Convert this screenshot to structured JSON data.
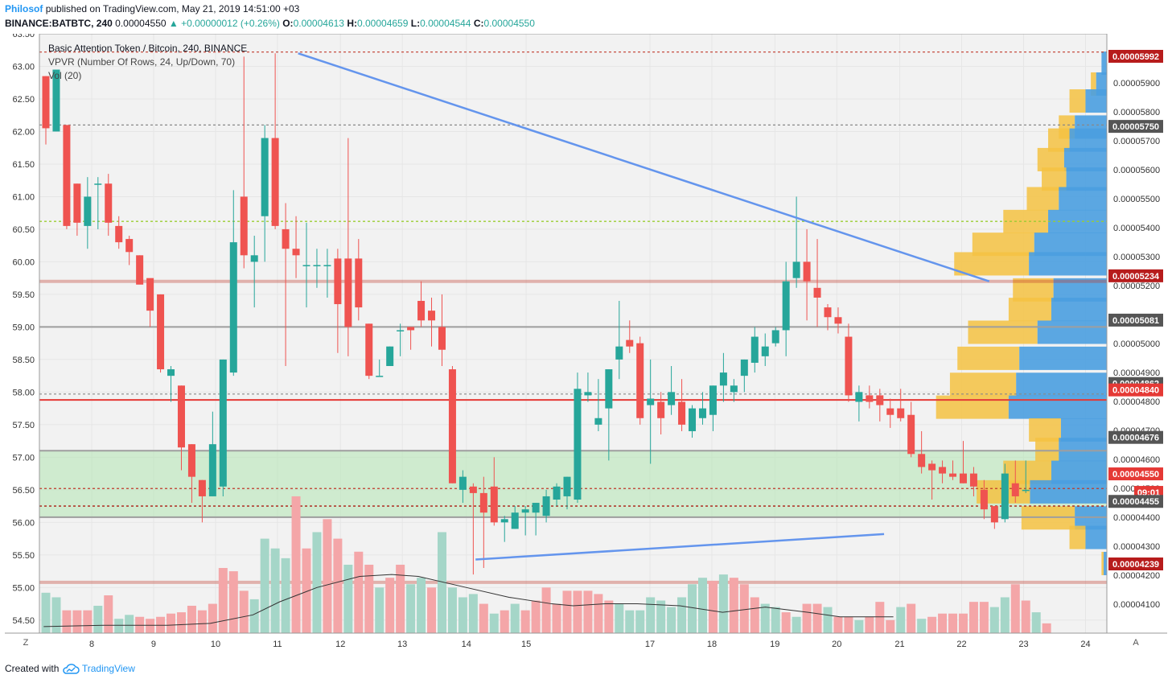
{
  "header": {
    "author": "Philosof",
    "published": "published on TradingView.com, May 21, 2019 14:51:00 +03",
    "symbol": "BINANCE:BATBTC, 240",
    "price": "0.00004550",
    "change": "▲ +0.00000012 (+0.26%)",
    "o_label": "O:",
    "o": "0.00004613",
    "h_label": "H:",
    "h": "0.00004659",
    "l_label": "L:",
    "l": "0.00004544",
    "c_label": "C:",
    "c": "0.00004550"
  },
  "legend": {
    "title": "Basic Attention Token / Bitcoin, 240, BINANCE",
    "vpvr": "VPVR (Number Of Rows, 24, Up/Down, 70)",
    "vol": "Vol (20)"
  },
  "footer": {
    "created": "Created with",
    "brand": "TradingView"
  },
  "colors": {
    "up": "#26a69a",
    "down": "#ef5350",
    "trend": "#6495ed",
    "zone": "#b2e6b2"
  },
  "chart_data": {
    "type": "candlestick",
    "title": "Basic Attention Token / Bitcoin, 240, BINANCE",
    "left_axis": {
      "ticks": [
        "63.50",
        "63.00",
        "62.50",
        "62.00",
        "61.50",
        "61.00",
        "60.50",
        "60.00",
        "59.50",
        "59.00",
        "58.50",
        "58.00",
        "57.50",
        "57.00",
        "56.50",
        "56.00",
        "55.50",
        "55.00",
        "54.50"
      ],
      "range": [
        54.3,
        63.5
      ]
    },
    "right_axis": {
      "ticks": [
        "0.00005900",
        "0.00005800",
        "0.00005700",
        "0.00005600",
        "0.00005500",
        "0.00005400",
        "0.00005300",
        "0.00005200",
        "0.00005000",
        "0.00004900",
        "0.00004800",
        "0.00004700",
        "0.00004600",
        "0.00004500",
        "0.00004400",
        "0.00004300",
        "0.00004200",
        "0.00004100"
      ]
    },
    "x_ticks": [
      "8",
      "9",
      "10",
      "11",
      "12",
      "13",
      "14",
      "15",
      "17",
      "18",
      "19",
      "20",
      "21",
      "22",
      "23",
      "24"
    ],
    "price_labels": [
      {
        "text": "0.00005992",
        "kind": "red"
      },
      {
        "text": "0.00005750",
        "kind": "gray"
      },
      {
        "text": "0.00005234",
        "kind": "red"
      },
      {
        "text": "0.00005081",
        "kind": "gray"
      },
      {
        "text": "0.00004862",
        "kind": "gray"
      },
      {
        "text": "0.00004840",
        "kind": "redsolid"
      },
      {
        "text": "0.00004676",
        "kind": "gray"
      },
      {
        "text": "0.00004550",
        "kind": "redsolid"
      },
      {
        "text": "09:01",
        "kind": "redsolid"
      },
      {
        "text": "0.00004455",
        "kind": "gray"
      },
      {
        "text": "0.00004239",
        "kind": "red"
      }
    ],
    "corner_left": "Z",
    "corner_right": "A",
    "levels": [
      {
        "y": 63.22,
        "style": "dotted-red"
      },
      {
        "y": 62.1,
        "style": "dotted-gray"
      },
      {
        "y": 60.62,
        "style": "dotted-green"
      },
      {
        "y": 59.7,
        "style": "band-red"
      },
      {
        "y": 59.0,
        "style": "solid-gray"
      },
      {
        "y": 57.97,
        "style": "dotted-gray"
      },
      {
        "y": 57.88,
        "style": "solid-red"
      },
      {
        "y": 57.1,
        "style": "solid-gray"
      },
      {
        "y": 56.52,
        "style": "dotted-red"
      },
      {
        "y": 56.25,
        "style": "dotted-red2"
      },
      {
        "y": 56.08,
        "style": "solid-gray"
      },
      {
        "y": 55.08,
        "style": "band-red"
      }
    ],
    "zone": {
      "top": 57.1,
      "bottom": 56.08
    },
    "trendlines": [
      {
        "x1": 0.2424,
        "y1": 63.2,
        "x2": 0.8898,
        "y2": 59.7
      },
      {
        "x1": 0.4086,
        "y1": 55.43,
        "x2": 0.7913,
        "y2": 55.82
      }
    ],
    "candles": [
      [
        62.85,
        62.85,
        61.8,
        62.05
      ],
      [
        62.0,
        62.9,
        62.0,
        62.95
      ],
      [
        62.1,
        62.1,
        60.5,
        60.55
      ],
      [
        61.2,
        61.2,
        60.4,
        60.6
      ],
      [
        60.55,
        61.3,
        60.2,
        61.0
      ],
      [
        61.2,
        61.3,
        60.5,
        61.2
      ],
      [
        61.2,
        61.35,
        60.4,
        60.6
      ],
      [
        60.55,
        60.7,
        60.2,
        60.3
      ],
      [
        60.35,
        60.4,
        59.95,
        60.15
      ],
      [
        60.1,
        60.1,
        59.7,
        59.65
      ],
      [
        59.75,
        59.7,
        59.0,
        59.25
      ],
      [
        59.5,
        59.5,
        58.3,
        58.35
      ],
      [
        58.25,
        58.4,
        57.85,
        58.35
      ],
      [
        58.1,
        58.1,
        56.8,
        57.15
      ],
      [
        57.2,
        57.2,
        56.3,
        56.7
      ],
      [
        56.65,
        56.65,
        56.0,
        56.4
      ],
      [
        56.4,
        57.7,
        56.4,
        57.2
      ],
      [
        56.55,
        58.5,
        56.4,
        58.5
      ],
      [
        58.3,
        61.1,
        58.25,
        60.3
      ],
      [
        61.0,
        63.15,
        59.9,
        60.1
      ],
      [
        60.0,
        60.4,
        59.3,
        60.1
      ],
      [
        60.7,
        62.1,
        60.0,
        61.9
      ],
      [
        61.9,
        63.2,
        60.5,
        60.55
      ],
      [
        60.5,
        60.9,
        58.4,
        60.2
      ],
      [
        60.2,
        60.7,
        59.75,
        60.1
      ],
      [
        59.95,
        60.6,
        59.3,
        59.95
      ],
      [
        59.95,
        60.2,
        59.6,
        59.95
      ],
      [
        59.95,
        60.2,
        59.45,
        59.95
      ],
      [
        60.05,
        60.2,
        58.6,
        59.35
      ],
      [
        60.05,
        61.9,
        58.55,
        59.0
      ],
      [
        60.05,
        60.35,
        59.1,
        59.3
      ],
      [
        59.05,
        59.05,
        58.2,
        58.25
      ],
      [
        58.25,
        58.5,
        58.25,
        58.25
      ],
      [
        58.4,
        58.7,
        58.4,
        58.7
      ],
      [
        58.95,
        59.05,
        58.55,
        58.95
      ],
      [
        59.0,
        59.0,
        58.65,
        58.95
      ],
      [
        59.4,
        59.7,
        59.0,
        59.1
      ],
      [
        59.25,
        59.45,
        58.7,
        59.1
      ],
      [
        59.0,
        59.5,
        58.4,
        58.65
      ],
      [
        58.35,
        58.4,
        56.6,
        56.6
      ],
      [
        56.5,
        56.8,
        56.3,
        56.7
      ],
      [
        56.55,
        56.6,
        55.2,
        56.45
      ],
      [
        56.45,
        56.7,
        55.3,
        56.15
      ],
      [
        56.55,
        57.0,
        55.95,
        56.0
      ],
      [
        56.0,
        56.1,
        55.7,
        56.05
      ],
      [
        55.9,
        56.25,
        55.9,
        56.15
      ],
      [
        56.15,
        56.25,
        55.8,
        56.2
      ],
      [
        56.15,
        56.3,
        55.8,
        56.3
      ],
      [
        56.1,
        56.5,
        56.0,
        56.4
      ],
      [
        56.35,
        56.6,
        56.25,
        56.55
      ],
      [
        56.4,
        56.7,
        56.2,
        56.7
      ],
      [
        56.35,
        58.3,
        56.3,
        58.05
      ],
      [
        57.95,
        58.3,
        57.85,
        58.0
      ],
      [
        57.5,
        58.2,
        57.4,
        57.6
      ],
      [
        57.75,
        58.35,
        56.95,
        58.35
      ],
      [
        58.5,
        59.4,
        58.2,
        58.7
      ],
      [
        58.8,
        59.1,
        58.6,
        58.7
      ],
      [
        58.75,
        58.85,
        57.5,
        57.6
      ],
      [
        57.8,
        58.5,
        56.9,
        57.9
      ],
      [
        57.85,
        58.0,
        57.35,
        57.6
      ],
      [
        57.8,
        58.4,
        57.65,
        58.0
      ],
      [
        57.85,
        58.2,
        57.4,
        57.5
      ],
      [
        57.4,
        57.8,
        57.3,
        57.75
      ],
      [
        57.6,
        58.0,
        57.5,
        57.75
      ],
      [
        57.65,
        58.1,
        57.4,
        58.1
      ],
      [
        58.1,
        58.6,
        57.85,
        58.3
      ],
      [
        58.0,
        58.2,
        57.85,
        58.1
      ],
      [
        58.25,
        58.5,
        58.0,
        58.5
      ],
      [
        58.45,
        59.0,
        58.3,
        58.85
      ],
      [
        58.55,
        58.9,
        58.4,
        58.7
      ],
      [
        58.75,
        59.0,
        58.7,
        58.95
      ],
      [
        58.95,
        60.0,
        58.55,
        59.7
      ],
      [
        59.75,
        61.0,
        59.6,
        60.0
      ],
      [
        60.0,
        60.5,
        59.1,
        59.7
      ],
      [
        59.6,
        60.35,
        59.0,
        59.45
      ],
      [
        59.3,
        59.35,
        58.95,
        59.15
      ],
      [
        59.15,
        59.3,
        58.9,
        59.05
      ],
      [
        58.85,
        59.05,
        57.85,
        57.95
      ],
      [
        57.85,
        58.1,
        57.55,
        58.0
      ],
      [
        57.95,
        58.1,
        57.75,
        57.85
      ],
      [
        57.95,
        58.05,
        57.55,
        57.8
      ],
      [
        57.75,
        57.9,
        57.45,
        57.65
      ],
      [
        57.75,
        58.05,
        57.55,
        57.6
      ],
      [
        57.65,
        57.85,
        57.0,
        57.05
      ],
      [
        57.05,
        57.4,
        56.75,
        56.85
      ],
      [
        56.9,
        56.95,
        56.35,
        56.8
      ],
      [
        56.85,
        56.95,
        56.6,
        56.75
      ],
      [
        56.75,
        56.95,
        56.65,
        56.7
      ],
      [
        56.75,
        57.25,
        56.6,
        56.6
      ],
      [
        56.75,
        56.85,
        56.4,
        56.55
      ],
      [
        56.5,
        56.65,
        56.05,
        56.2
      ],
      [
        56.25,
        56.25,
        55.9,
        56.0
      ],
      [
        56.05,
        56.9,
        56.0,
        56.75
      ],
      [
        56.6,
        56.95,
        56.3,
        56.4
      ],
      [
        56.5,
        56.95,
        56.45,
        56.5
      ]
    ],
    "volume": [
      [
        54.92,
        "up"
      ],
      [
        54.85,
        "up"
      ],
      [
        54.65,
        "down"
      ],
      [
        54.65,
        "down"
      ],
      [
        54.65,
        "down"
      ],
      [
        54.72,
        "up"
      ],
      [
        54.88,
        "down"
      ],
      [
        54.52,
        "up"
      ],
      [
        54.58,
        "up"
      ],
      [
        54.55,
        "down"
      ],
      [
        54.52,
        "down"
      ],
      [
        54.55,
        "down"
      ],
      [
        54.6,
        "down"
      ],
      [
        54.62,
        "down"
      ],
      [
        54.72,
        "down"
      ],
      [
        54.65,
        "down"
      ],
      [
        54.75,
        "down"
      ],
      [
        55.3,
        "down"
      ],
      [
        55.25,
        "down"
      ],
      [
        54.95,
        "down"
      ],
      [
        54.82,
        "up"
      ],
      [
        55.75,
        "up"
      ],
      [
        55.6,
        "up"
      ],
      [
        55.45,
        "up"
      ],
      [
        56.4,
        "down"
      ],
      [
        55.6,
        "down"
      ],
      [
        55.85,
        "up"
      ],
      [
        56.05,
        "down"
      ],
      [
        55.75,
        "down"
      ],
      [
        55.35,
        "up"
      ],
      [
        55.55,
        "down"
      ],
      [
        55.35,
        "down"
      ],
      [
        55.0,
        "up"
      ],
      [
        55.15,
        "down"
      ],
      [
        55.35,
        "down"
      ],
      [
        55.05,
        "up"
      ],
      [
        55.15,
        "up"
      ],
      [
        55.0,
        "down"
      ],
      [
        55.85,
        "up"
      ],
      [
        55.0,
        "up"
      ],
      [
        54.85,
        "up"
      ],
      [
        54.9,
        "up"
      ],
      [
        54.75,
        "down"
      ],
      [
        54.6,
        "up"
      ],
      [
        54.65,
        "down"
      ],
      [
        54.75,
        "up"
      ],
      [
        54.65,
        "down"
      ],
      [
        54.8,
        "down"
      ],
      [
        55.0,
        "down"
      ],
      [
        54.75,
        "down"
      ],
      [
        54.95,
        "down"
      ],
      [
        54.95,
        "down"
      ],
      [
        54.95,
        "down"
      ],
      [
        54.9,
        "down"
      ],
      [
        54.8,
        "down"
      ],
      [
        54.75,
        "up"
      ],
      [
        54.65,
        "up"
      ],
      [
        54.65,
        "up"
      ],
      [
        54.85,
        "up"
      ],
      [
        54.8,
        "up"
      ],
      [
        54.7,
        "up"
      ],
      [
        54.85,
        "up"
      ],
      [
        55.05,
        "up"
      ],
      [
        55.15,
        "up"
      ],
      [
        55.1,
        "down"
      ],
      [
        55.2,
        "up"
      ],
      [
        55.15,
        "down"
      ],
      [
        55.05,
        "down"
      ],
      [
        54.85,
        "down"
      ],
      [
        54.75,
        "up"
      ],
      [
        54.7,
        "up"
      ],
      [
        54.62,
        "down"
      ],
      [
        54.55,
        "up"
      ],
      [
        54.75,
        "down"
      ],
      [
        54.75,
        "down"
      ],
      [
        54.7,
        "up"
      ],
      [
        54.55,
        "down"
      ],
      [
        54.55,
        "down"
      ],
      [
        54.5,
        "up"
      ],
      [
        54.55,
        "down"
      ],
      [
        54.78,
        "down"
      ],
      [
        54.5,
        "down"
      ],
      [
        54.7,
        "up"
      ],
      [
        54.75,
        "down"
      ],
      [
        54.52,
        "up"
      ],
      [
        54.55,
        "down"
      ],
      [
        54.6,
        "down"
      ],
      [
        54.6,
        "down"
      ],
      [
        54.6,
        "down"
      ],
      [
        54.78,
        "down"
      ],
      [
        54.78,
        "down"
      ],
      [
        54.7,
        "up"
      ],
      [
        54.85,
        "up"
      ],
      [
        55.05,
        "down"
      ],
      [
        54.8,
        "down"
      ],
      [
        54.62,
        "up"
      ],
      [
        54.45,
        "down"
      ]
    ],
    "vpvr_rows": [
      [
        63.03,
        0.005,
        0.0
      ],
      [
        62.71,
        0.01,
        0.005
      ],
      [
        62.45,
        0.02,
        0.015
      ],
      [
        62.05,
        0.03,
        0.015
      ],
      [
        61.85,
        0.035,
        0.02
      ],
      [
        61.55,
        0.04,
        0.025
      ],
      [
        61.25,
        0.038,
        0.023
      ],
      [
        60.95,
        0.045,
        0.03
      ],
      [
        60.6,
        0.055,
        0.042
      ],
      [
        60.25,
        0.068,
        0.058
      ],
      [
        59.95,
        0.073,
        0.07
      ],
      [
        59.55,
        0.05,
        0.038
      ],
      [
        59.25,
        0.052,
        0.04
      ],
      [
        58.9,
        0.065,
        0.065
      ],
      [
        58.5,
        0.082,
        0.058
      ],
      [
        58.1,
        0.085,
        0.062
      ],
      [
        57.75,
        0.092,
        0.068
      ],
      [
        57.4,
        0.043,
        0.03
      ],
      [
        57.1,
        0.045,
        0.022
      ],
      [
        56.75,
        0.052,
        0.045
      ],
      [
        56.45,
        0.072,
        0.05
      ],
      [
        56.05,
        0.03,
        0.05
      ],
      [
        55.75,
        0.02,
        0.015
      ],
      [
        55.35,
        0.003,
        0.002
      ]
    ],
    "vol_ma": [
      [
        0.004,
        54.4
      ],
      [
        0.06,
        54.42
      ],
      [
        0.12,
        54.42
      ],
      [
        0.16,
        54.45
      ],
      [
        0.2,
        54.58
      ],
      [
        0.225,
        54.78
      ],
      [
        0.26,
        55.0
      ],
      [
        0.3,
        55.17
      ],
      [
        0.33,
        55.2
      ],
      [
        0.355,
        55.17
      ],
      [
        0.4,
        55.0
      ],
      [
        0.44,
        54.85
      ],
      [
        0.48,
        54.75
      ],
      [
        0.5,
        54.72
      ],
      [
        0.53,
        54.75
      ],
      [
        0.56,
        54.75
      ],
      [
        0.6,
        54.72
      ],
      [
        0.64,
        54.62
      ],
      [
        0.68,
        54.7
      ],
      [
        0.72,
        54.62
      ],
      [
        0.75,
        54.55
      ],
      [
        0.78,
        54.55
      ],
      [
        0.8,
        54.55
      ]
    ]
  }
}
